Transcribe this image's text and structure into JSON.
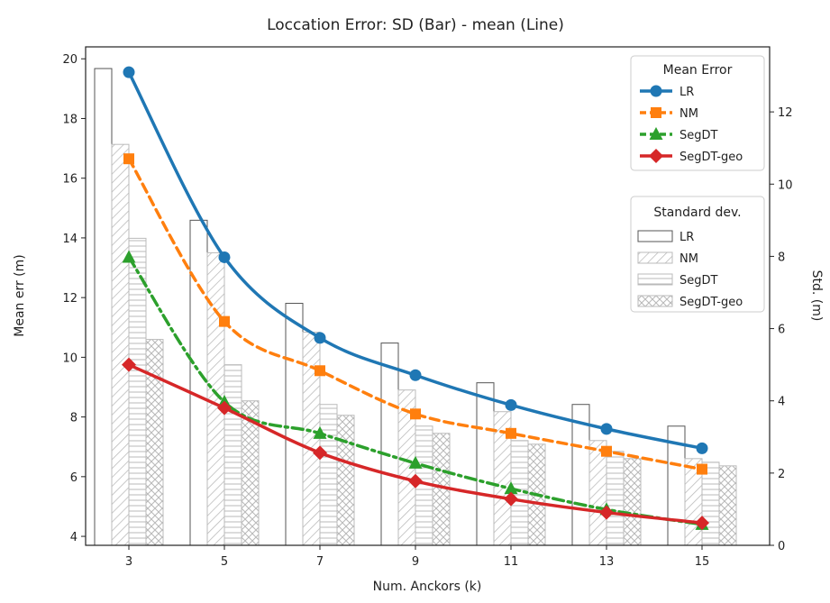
{
  "chart_data": {
    "type": "bar+line",
    "title": "Loccation Error: SD (Bar) - mean (Line)",
    "xlabel": "Num. Anckors (k)",
    "ylabel_left": "Mean err (m)",
    "ylabel_right": "Std. (m)",
    "categories": [
      "3",
      "5",
      "7",
      "9",
      "11",
      "13",
      "15"
    ],
    "x": [
      3,
      5,
      7,
      9,
      11,
      13,
      15
    ],
    "ylim_left": [
      3.7,
      20.4
    ],
    "yticks_left": [
      "4",
      "6",
      "8",
      "10",
      "12",
      "14",
      "16",
      "18",
      "20"
    ],
    "ylim_right": [
      0,
      13.8
    ],
    "yticks_right": [
      "0",
      "2",
      "4",
      "6",
      "8",
      "10",
      "12"
    ],
    "mean_legend_title": "Mean Error",
    "std_legend_title": "Standard dev.",
    "mean_series": [
      {
        "name": "LR",
        "color": "#1f77b4",
        "style": "solid",
        "marker": "circle",
        "values": [
          19.55,
          13.35,
          10.65,
          9.4,
          8.4,
          7.6,
          6.95
        ]
      },
      {
        "name": "NM",
        "color": "#ff7f0e",
        "style": "dashed",
        "marker": "square",
        "values": [
          16.65,
          11.2,
          9.55,
          8.1,
          7.45,
          6.85,
          6.25
        ]
      },
      {
        "name": "SegDT",
        "color": "#2ca02c",
        "style": "dashdot",
        "marker": "triangle",
        "values": [
          13.35,
          8.5,
          7.45,
          6.45,
          5.6,
          4.9,
          4.4
        ]
      },
      {
        "name": "SegDT-geo",
        "color": "#d62728",
        "style": "solid",
        "marker": "diamond",
        "values": [
          9.75,
          8.3,
          6.8,
          5.85,
          5.25,
          4.8,
          4.45
        ]
      }
    ],
    "std_series": [
      {
        "name": "LR",
        "hatch": "none",
        "values": [
          13.2,
          9.0,
          6.7,
          5.6,
          4.5,
          3.9,
          3.3
        ]
      },
      {
        "name": "NM",
        "hatch": "diagonal",
        "values": [
          11.1,
          8.1,
          5.9,
          4.3,
          3.7,
          2.9,
          2.4
        ]
      },
      {
        "name": "SegDT",
        "hatch": "horizontal",
        "values": [
          8.5,
          5.0,
          3.9,
          3.3,
          2.9,
          2.6,
          2.3
        ]
      },
      {
        "name": "SegDT-geo",
        "hatch": "cross",
        "values": [
          5.7,
          4.0,
          3.6,
          3.1,
          2.8,
          2.4,
          2.2
        ]
      }
    ]
  }
}
